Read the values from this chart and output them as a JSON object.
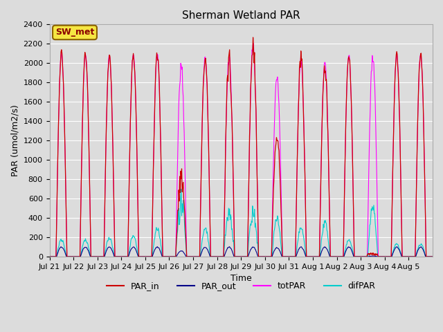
{
  "title": "Sherman Wetland PAR",
  "ylabel": "PAR (umol/m2/s)",
  "xlabel": "Time",
  "ylim": [
    0,
    2400
  ],
  "yticks": [
    0,
    200,
    400,
    600,
    800,
    1000,
    1200,
    1400,
    1600,
    1800,
    2000,
    2200,
    2400
  ],
  "background_color": "#dcdcdc",
  "plot_bg_color": "#dcdcdc",
  "grid_color": "#ffffff",
  "legend_label": "SW_met",
  "line_colors": {
    "PAR_in": "#cc0000",
    "PAR_out": "#000088",
    "totPAR": "#ff00ff",
    "difPAR": "#00cccc"
  },
  "xtick_labels": [
    "Jul 21",
    "Jul 22",
    "Jul 23",
    "Jul 24",
    "Jul 25",
    "Jul 26",
    "Jul 27",
    "Jul 28",
    "Jul 29",
    "Jul 30",
    "Jul 31",
    "Aug 1",
    "Aug 2",
    "Aug 3",
    "Aug 4",
    "Aug 5"
  ],
  "title_fontsize": 11,
  "label_fontsize": 9,
  "tick_fontsize": 8
}
